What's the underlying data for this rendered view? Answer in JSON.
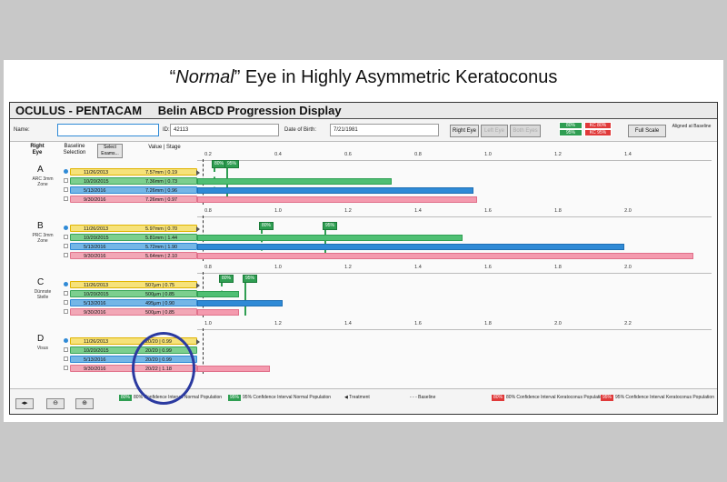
{
  "headline": {
    "prefix": "“",
    "italic": "Normal",
    "suffix": "” Eye in Highly Asymmetric Keratoconus"
  },
  "titlebar": {
    "brand": "OCULUS  -  PENTACAM",
    "title": "Belin ABCD Progression Display"
  },
  "info": {
    "name_label": "Name:",
    "name_value": "",
    "id_label": "ID:",
    "id_value": "42113",
    "dob_label": "Date of Birth:",
    "dob_value": "7/21/1981",
    "right_eye": "Right Eye",
    "left_eye": "Left Eye",
    "both_eyes": "Both Eyes",
    "ci_normal_80": "80%",
    "ci_normal_95": "95%",
    "ci_kc_80": "KC 80%",
    "ci_kc_95": "KC 95%",
    "full_scale": "Full Scale",
    "aligned": "Aligned at Baseline"
  },
  "header": {
    "eye": "Right Eye",
    "baseline": "Baseline Selection",
    "select": "Select Exams...",
    "value_stage": "Value | Stage"
  },
  "sections": [
    {
      "letter": "A",
      "sub": "ARC 3mm Zone",
      "ticks": [
        "0.2",
        "0.4",
        "0.6",
        "0.8",
        "1.0",
        "1.2",
        "1.4"
      ],
      "flag80": "80%",
      "flag95": "95%",
      "rows": [
        {
          "date": "11/26/2013",
          "value": "7.57mm | 0.19"
        },
        {
          "date": "10/20/2015",
          "value": "7.36mm | 0.73"
        },
        {
          "date": "5/13/2016",
          "value": "7.26mm | 0.96"
        },
        {
          "date": "9/30/2016",
          "value": "7.26mm | 0.97"
        }
      ]
    },
    {
      "letter": "B",
      "sub": "PRC 3mm Zone",
      "ticks": [
        "0.8",
        "1.0",
        "1.2",
        "1.4",
        "1.6",
        "1.8",
        "2.0"
      ],
      "flag80": "80%",
      "flag95": "95%",
      "rows": [
        {
          "date": "11/26/2013",
          "value": "5.97mm | 0.70"
        },
        {
          "date": "10/20/2015",
          "value": "5.81mm | 1.44"
        },
        {
          "date": "5/13/2016",
          "value": "5.72mm | 1.90"
        },
        {
          "date": "9/30/2016",
          "value": "5.64mm | 2.10"
        }
      ]
    },
    {
      "letter": "C",
      "sub": "Dünnste Stelle",
      "ticks": [
        "0.8",
        "1.0",
        "1.2",
        "1.4",
        "1.6",
        "1.8",
        "2.0"
      ],
      "flag80": "80%",
      "flag95": "95%",
      "rows": [
        {
          "date": "11/26/2013",
          "value": "507µm | 0.75"
        },
        {
          "date": "10/20/2015",
          "value": "500µm | 0.85"
        },
        {
          "date": "5/13/2016",
          "value": "495µm | 0.90"
        },
        {
          "date": "9/30/2016",
          "value": "500µm | 0.85"
        }
      ]
    },
    {
      "letter": "D",
      "sub": "Visus",
      "ticks": [
        "1.0",
        "1.2",
        "1.4",
        "1.6",
        "1.8",
        "2.0",
        "2.2"
      ],
      "rows": [
        {
          "date": "11/26/2013",
          "value": "20/20 | 0.99"
        },
        {
          "date": "10/20/2015",
          "value": "20/20 | 0.99"
        },
        {
          "date": "5/13/2016",
          "value": "20/20 | 0.99"
        },
        {
          "date": "9/30/2016",
          "value": "20/22 | 1.18"
        }
      ]
    }
  ],
  "legend": {
    "n80": "80%",
    "n80_text": "80% Confidence Interval Normal Population",
    "n95": "95%",
    "n95_text": "95% Confidence Interval Normal Population",
    "treatment": "Treatment",
    "baseline": "Baseline",
    "k80": "80%",
    "k80_text": "80% Confidence Interval Keratoconus Population",
    "k95": "95%",
    "k95_text": "95% Confidence Interval Keratoconus Population"
  },
  "colors": {
    "yellow": "#f6e27a",
    "green": "#4fbf73",
    "blue": "#2f8ad6",
    "pink": "#f49aae",
    "circle": "#2b3aa0",
    "kc_red": "#e03a3a"
  }
}
